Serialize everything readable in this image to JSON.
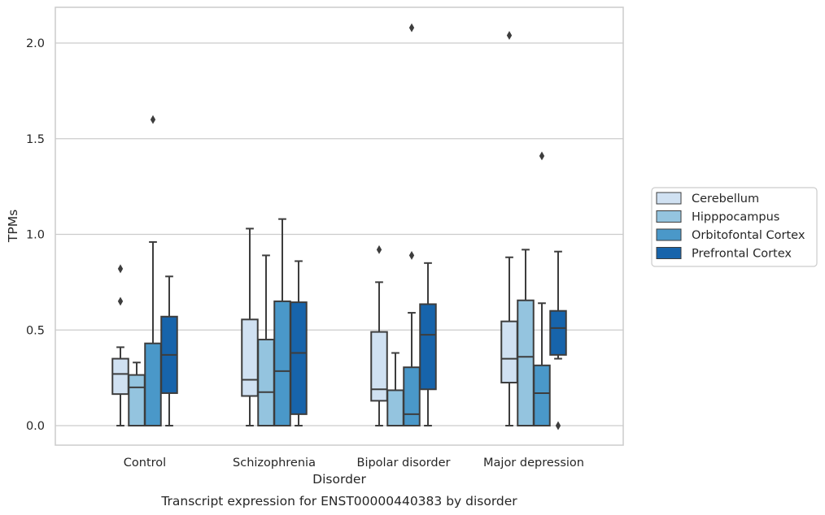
{
  "chart_data": {
    "type": "boxplot",
    "caption": "Transcript expression for ENST00000440383 by disorder",
    "xlabel": "Disorder",
    "ylabel": "TPMs",
    "ylim": [
      -0.1,
      2.2
    ],
    "yticks": [
      0.0,
      0.5,
      1.0,
      1.5,
      2.0
    ],
    "ytick_labels": [
      "0.0",
      "0.5",
      "1.0",
      "1.5",
      "2.0"
    ],
    "grid": "horizontal",
    "legend_position": "right",
    "categories": [
      "Control",
      "Schizophrenia",
      "Bipolar disorder",
      "Major depression"
    ],
    "series": [
      {
        "name": "Cerebellum",
        "color": "#d0e1f2",
        "boxes": [
          {
            "whislo": 0.0,
            "q1": 0.165,
            "med": 0.27,
            "q3": 0.35,
            "whishi": 0.41,
            "fliers": [
              0.65,
              0.82
            ]
          },
          {
            "whislo": 0.0,
            "q1": 0.155,
            "med": 0.24,
            "q3": 0.555,
            "whishi": 1.03,
            "fliers": []
          },
          {
            "whislo": 0.0,
            "q1": 0.13,
            "med": 0.19,
            "q3": 0.49,
            "whishi": 0.75,
            "fliers": [
              0.92
            ]
          },
          {
            "whislo": 0.0,
            "q1": 0.225,
            "med": 0.35,
            "q3": 0.545,
            "whishi": 0.88,
            "fliers": [
              2.04
            ]
          }
        ]
      },
      {
        "name": "Hipppocampus",
        "color": "#94c4df",
        "boxes": [
          {
            "whislo": 0.0,
            "q1": 0.0,
            "med": 0.2,
            "q3": 0.265,
            "whishi": 0.33,
            "fliers": []
          },
          {
            "whislo": 0.0,
            "q1": 0.0,
            "med": 0.175,
            "q3": 0.45,
            "whishi": 0.89,
            "fliers": []
          },
          {
            "whislo": 0.0,
            "q1": 0.0,
            "med": 0.0,
            "q3": 0.185,
            "whishi": 0.38,
            "fliers": []
          },
          {
            "whislo": 0.0,
            "q1": 0.0,
            "med": 0.36,
            "q3": 0.655,
            "whishi": 0.92,
            "fliers": []
          }
        ]
      },
      {
        "name": "Orbitofontal Cortex",
        "color": "#4a98c9",
        "boxes": [
          {
            "whislo": 0.0,
            "q1": 0.0,
            "med": 0.0,
            "q3": 0.43,
            "whishi": 0.96,
            "fliers": [
              1.6
            ]
          },
          {
            "whislo": 0.0,
            "q1": 0.0,
            "med": 0.285,
            "q3": 0.65,
            "whishi": 1.08,
            "fliers": []
          },
          {
            "whislo": 0.0,
            "q1": 0.0,
            "med": 0.06,
            "q3": 0.305,
            "whishi": 0.59,
            "fliers": [
              0.89,
              2.08
            ]
          },
          {
            "whislo": 0.0,
            "q1": 0.0,
            "med": 0.17,
            "q3": 0.315,
            "whishi": 0.64,
            "fliers": [
              1.41
            ]
          }
        ]
      },
      {
        "name": "Prefrontal Cortex",
        "color": "#1764ab",
        "boxes": [
          {
            "whislo": 0.0,
            "q1": 0.17,
            "med": 0.37,
            "q3": 0.57,
            "whishi": 0.78,
            "fliers": []
          },
          {
            "whislo": 0.0,
            "q1": 0.06,
            "med": 0.38,
            "q3": 0.645,
            "whishi": 0.86,
            "fliers": []
          },
          {
            "whislo": 0.0,
            "q1": 0.19,
            "med": 0.475,
            "q3": 0.635,
            "whishi": 0.85,
            "fliers": []
          },
          {
            "whislo": 0.35,
            "q1": 0.37,
            "med": 0.51,
            "q3": 0.6,
            "whishi": 0.91,
            "fliers": [
              0.0
            ]
          }
        ]
      }
    ]
  }
}
